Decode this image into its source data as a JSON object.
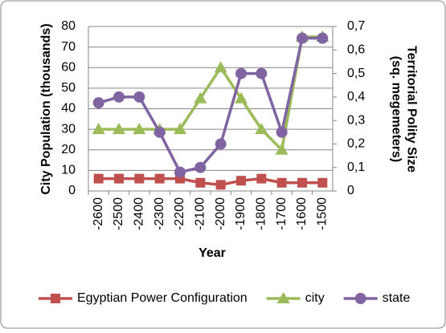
{
  "chart_data": {
    "type": "line",
    "x_label": "Year",
    "y_label": "City Population (thousands)",
    "y2_label": "Territorial Polity Size (sq. megemeters)",
    "categories": [
      -2600,
      -2500,
      -2400,
      -2300,
      -2200,
      -2100,
      -2000,
      -1900,
      -1800,
      -1700,
      -1600,
      -1500
    ],
    "ylim": [
      0,
      80
    ],
    "yticks": [
      0,
      10,
      20,
      30,
      40,
      50,
      60,
      70,
      80
    ],
    "y2lim": [
      0,
      0.7
    ],
    "y2ticks": [
      0,
      {
        "value": 0.1,
        "label": "0,1"
      },
      {
        "value": 0.2,
        "label": "0,2"
      },
      {
        "value": 0.3,
        "label": "0,3"
      },
      {
        "value": 0.4,
        "label": "0,4"
      },
      {
        "value": 0.5,
        "label": "0,5"
      },
      {
        "value": 0.6,
        "label": "0,6"
      },
      {
        "value": 0.7,
        "label": "0,7"
      }
    ],
    "grid": true,
    "legend": "bottom",
    "series": [
      {
        "name": "Egyptian Power Configuration",
        "color": "#c0504d",
        "marker": "square",
        "values": [
          6,
          6,
          6,
          6,
          6,
          4,
          3,
          5,
          6,
          4,
          4,
          4
        ]
      },
      {
        "name": "city",
        "color": "#9bbb59",
        "marker": "triangle",
        "values": [
          30,
          30,
          30,
          30,
          30,
          45,
          60,
          45,
          30,
          20,
          75,
          75
        ]
      },
      {
        "name": "state",
        "color": "#8064a2",
        "marker": "circle",
        "axis": "y2",
        "values": [
          0.375,
          0.4,
          0.4,
          0.25,
          0.08,
          0.1,
          0.2,
          0.5,
          0.5,
          0.25,
          0.65,
          0.65
        ]
      }
    ]
  }
}
